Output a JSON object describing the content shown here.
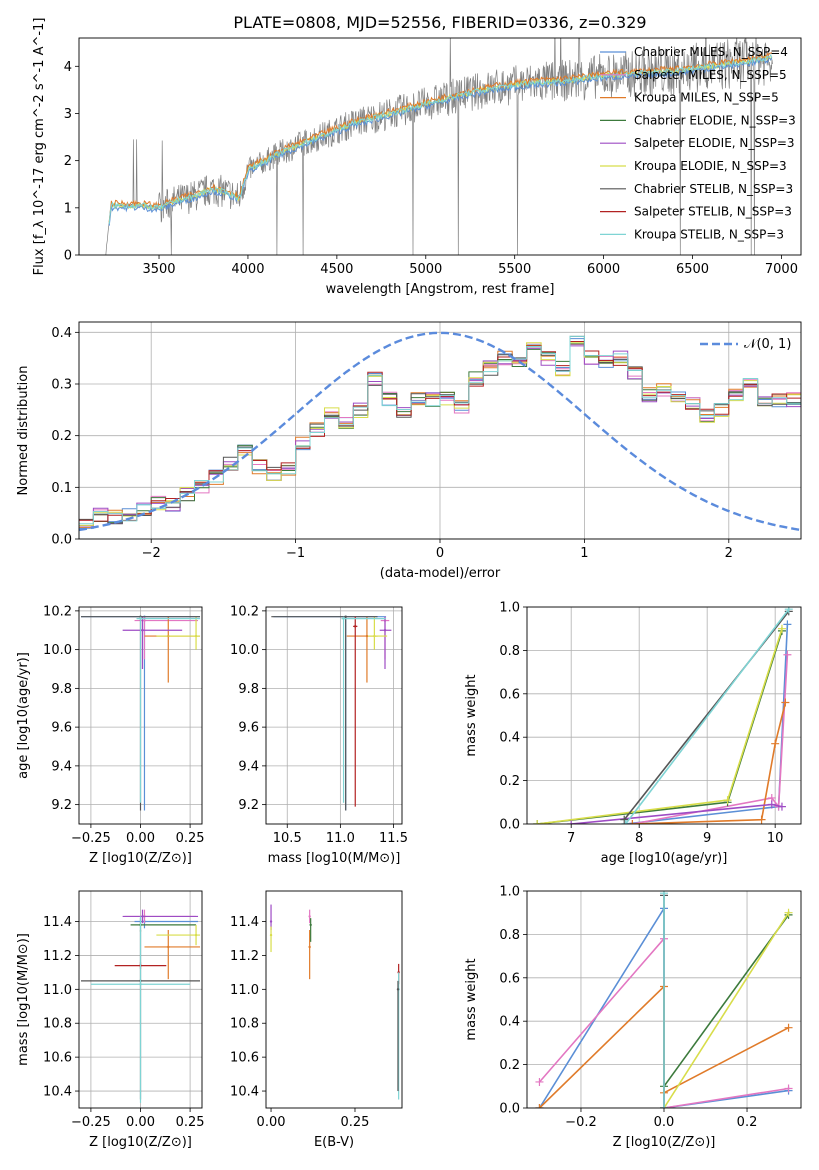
{
  "figure": {
    "title": "PLATE=0808, MJD=52556, FIBERID=0336, z=0.329"
  },
  "colors": {
    "chabrier_miles": "#5b8fd6",
    "salpeter_miles": "#e377c2",
    "kroupa_miles": "#e07b2a",
    "chabrier_elodie": "#3c7a3c",
    "salpeter_elodie": "#9e4cc4",
    "kroupa_elodie": "#d8dd4a",
    "chabrier_stelib": "#555555",
    "salpeter_stelib": "#b22222",
    "kroupa_stelib": "#7fd4d4",
    "spectrum": "#808080",
    "normal": "#5b8bdc",
    "grid": "#b0b0b0"
  },
  "chart_data": [
    {
      "id": "spectrum",
      "type": "line",
      "xlabel": "wavelength [Angstrom, rest frame]",
      "ylabel": "Flux [f_λ 10^-17 erg cm^-2 s^-1 A^-1]",
      "xlim": [
        3050,
        7110
      ],
      "ylim": [
        0,
        4.6
      ],
      "xticks": [
        "3500",
        "4000",
        "4500",
        "5000",
        "5500",
        "6000",
        "6500",
        "7000"
      ],
      "yticks": [
        "0",
        "1",
        "2",
        "3",
        "4"
      ],
      "grid": false,
      "legend_position": "upper-right",
      "legend": [
        "Chabrier MILES, N_SSP=4",
        "Salpeter MILES, N_SSP=5",
        "Kroupa MILES, N_SSP=5",
        "Chabrier ELODIE, N_SSP=3",
        "Salpeter ELODIE, N_SSP=3",
        "Kroupa ELODIE, N_SSP=3",
        "Chabrier STELIB, N_SSP=3",
        "Salpeter STELIB, N_SSP=3",
        "Kroupa STELIB, N_SSP=3"
      ],
      "trend": {
        "x": [
          3200,
          3230,
          3400,
          3500,
          3600,
          3700,
          3800,
          3900,
          3950,
          4000,
          4200,
          4400,
          4600,
          4800,
          5000,
          5200,
          5400,
          5600,
          5800,
          6000,
          6200,
          6400,
          6600,
          6800,
          6950
        ],
        "y": [
          0,
          1.05,
          1.05,
          1.0,
          1.15,
          1.25,
          1.4,
          1.3,
          1.2,
          1.8,
          2.2,
          2.5,
          2.8,
          3.0,
          3.2,
          3.4,
          3.55,
          3.65,
          3.7,
          3.8,
          3.85,
          3.9,
          4.0,
          4.1,
          4.2
        ]
      }
    },
    {
      "id": "residuals",
      "type": "histogram",
      "xlabel": "(data-model)/error",
      "ylabel": "Normed distribution",
      "xlim": [
        -2.5,
        2.5
      ],
      "ylim": [
        0,
        0.42
      ],
      "xticks": [
        "−2",
        "−1",
        "0",
        "1",
        "2"
      ],
      "yticks": [
        "0.0",
        "0.1",
        "0.2",
        "0.3",
        "0.4"
      ],
      "grid": true,
      "legend_position": "upper-right",
      "normal_label": "𝒩(0, 1)",
      "bin_width": 0.1,
      "bin_start": -2.5,
      "base_values": [
        0.035,
        0.045,
        0.042,
        0.048,
        0.055,
        0.07,
        0.068,
        0.085,
        0.1,
        0.12,
        0.145,
        0.17,
        0.14,
        0.125,
        0.135,
        0.185,
        0.21,
        0.24,
        0.225,
        0.25,
        0.31,
        0.27,
        0.25,
        0.27,
        0.27,
        0.27,
        0.255,
        0.31,
        0.33,
        0.35,
        0.345,
        0.37,
        0.35,
        0.33,
        0.38,
        0.35,
        0.34,
        0.35,
        0.32,
        0.28,
        0.29,
        0.27,
        0.265,
        0.24,
        0.25,
        0.28,
        0.3,
        0.27,
        0.27,
        0.27,
        0.35,
        0.375,
        0.38,
        0.33,
        0.36,
        0.35,
        0.31,
        0.34,
        0.31,
        0.28,
        0.3,
        0.27,
        0.245,
        0.265,
        0.28,
        0.31,
        0.26,
        0.25,
        0.22,
        0.2,
        0.2,
        0.195,
        0.175,
        0.165,
        0.15,
        0.16,
        0.155,
        0.14,
        0.13,
        0.12,
        0.115,
        0.13,
        0.1,
        0.095,
        0.09,
        0.08,
        0.075,
        0.07,
        0.065,
        0.06,
        0.055,
        0.05,
        0.045,
        0.04,
        0.045,
        0.04,
        0.035,
        0.04,
        0.035,
        0.03
      ]
    },
    {
      "id": "age_vs_Z",
      "type": "errorbar",
      "xlabel": "Z [log10(Z/Z⊙)]",
      "ylabel": "age  [log10(age/yr)]",
      "xlim": [
        -0.31,
        0.31
      ],
      "ylim": [
        9.1,
        10.22
      ],
      "xticks": [
        "−0.25",
        "0.00",
        "0.25"
      ],
      "yticks": [
        "9.2",
        "9.4",
        "9.6",
        "9.8",
        "10.0",
        "10.2"
      ],
      "grid": true,
      "points": [
        {
          "x": 0.02,
          "y": 10.17,
          "xerr": [
            0.32,
            0.28
          ],
          "yerr": [
            1.0,
            0.0
          ],
          "c": "chabrier_miles"
        },
        {
          "x": 0.02,
          "y": 10.15,
          "xerr": [
            0.05,
            0.27
          ],
          "yerr": [
            0.2,
            0.02
          ],
          "c": "salpeter_miles"
        },
        {
          "x": 0.14,
          "y": 10.07,
          "xerr": [
            0.12,
            0.16
          ],
          "yerr": [
            0.24,
            0.1
          ],
          "c": "kroupa_miles"
        },
        {
          "x": 0.01,
          "y": 10.1,
          "xerr": [
            0.1,
            0.2
          ],
          "yerr": [
            0.2,
            0.07
          ],
          "c": "salpeter_elodie"
        },
        {
          "x": 0.28,
          "y": 10.07,
          "xerr": [
            0.2,
            0.02
          ],
          "yerr": [
            0.07,
            0.1
          ],
          "c": "kroupa_elodie"
        },
        {
          "x": 0.0,
          "y": 10.17,
          "xerr": [
            0.3,
            0.3
          ],
          "yerr": [
            1.0,
            0.0
          ],
          "c": "chabrier_stelib"
        },
        {
          "x": 0.0,
          "y": 10.16,
          "xerr": [
            0.02,
            0.3
          ],
          "yerr": [
            0.95,
            0.01
          ],
          "c": "kroupa_stelib"
        }
      ]
    },
    {
      "id": "age_vs_mass",
      "type": "errorbar",
      "xlabel": "mass [log10(M/M⊙)]",
      "ylabel": "",
      "xlim": [
        10.3,
        11.58
      ],
      "ylim": [
        9.1,
        10.22
      ],
      "xticks": [
        "10.5",
        "11.0",
        "11.5"
      ],
      "yticks": [
        "9.2",
        "9.4",
        "9.6",
        "9.8",
        "10.0",
        "10.2"
      ],
      "grid": true,
      "points": [
        {
          "x": 11.05,
          "y": 10.17,
          "xerr": [
            0.68,
            0.38
          ],
          "yerr": [
            1.0,
            0.0
          ],
          "c": "chabrier_miles"
        },
        {
          "x": 11.42,
          "y": 10.15,
          "xerr": [
            0.04,
            0.04
          ],
          "yerr": [
            0.2,
            0.02
          ],
          "c": "salpeter_miles"
        },
        {
          "x": 11.25,
          "y": 10.07,
          "xerr": [
            0.19,
            0.1
          ],
          "yerr": [
            0.24,
            0.1
          ],
          "c": "kroupa_miles"
        },
        {
          "x": 11.42,
          "y": 10.1,
          "xerr": [
            0.05,
            0.06
          ],
          "yerr": [
            0.2,
            0.07
          ],
          "c": "salpeter_elodie"
        },
        {
          "x": 11.32,
          "y": 10.07,
          "xerr": [
            0.06,
            0.12
          ],
          "yerr": [
            0.07,
            0.1
          ],
          "c": "kroupa_elodie"
        },
        {
          "x": 11.05,
          "y": 10.17,
          "xerr": [
            0.7,
            0.3
          ],
          "yerr": [
            1.0,
            0.0
          ],
          "c": "chabrier_stelib"
        },
        {
          "x": 11.14,
          "y": 10.12,
          "xerr": [
            0.02,
            0.02
          ],
          "yerr": [
            0.93,
            0.05
          ],
          "c": "salpeter_stelib"
        },
        {
          "x": 11.03,
          "y": 10.16,
          "xerr": [
            0.02,
            0.4
          ],
          "yerr": [
            0.95,
            0.01
          ],
          "c": "kroupa_stelib"
        }
      ]
    },
    {
      "id": "mass_weight_vs_age",
      "type": "line",
      "xlabel": "age  [log10(age/yr)]",
      "ylabel": "mass weight",
      "xlim": [
        6.35,
        10.38
      ],
      "ylim": [
        0,
        1.0
      ],
      "xticks": [
        "7",
        "8",
        "9",
        "10"
      ],
      "yticks": [
        "0.0",
        "0.2",
        "0.4",
        "0.6",
        "0.8",
        "1.0"
      ],
      "grid": true,
      "series": [
        {
          "c": "chabrier_miles",
          "x": [
            7.8,
            10.05,
            10.18
          ],
          "y": [
            0.0,
            0.08,
            0.92
          ]
        },
        {
          "c": "salpeter_miles",
          "x": [
            7.9,
            9.95,
            10.05,
            10.18
          ],
          "y": [
            0.0,
            0.12,
            0.08,
            0.78
          ]
        },
        {
          "c": "kroupa_miles",
          "x": [
            7.9,
            9.8,
            10.0,
            10.15
          ],
          "y": [
            0.0,
            0.02,
            0.37,
            0.56
          ]
        },
        {
          "c": "chabrier_elodie",
          "x": [
            6.5,
            9.3,
            10.1
          ],
          "y": [
            0.0,
            0.1,
            0.89
          ]
        },
        {
          "c": "salpeter_elodie",
          "x": [
            7.0,
            9.95,
            10.1
          ],
          "y": [
            0.0,
            0.09,
            0.08
          ]
        },
        {
          "c": "kroupa_elodie",
          "x": [
            6.5,
            9.3,
            10.1
          ],
          "y": [
            0.0,
            0.11,
            0.9
          ]
        },
        {
          "c": "chabrier_stelib",
          "x": [
            7.78,
            10.2
          ],
          "y": [
            0.02,
            0.98
          ]
        },
        {
          "c": "kroupa_stelib",
          "x": [
            7.8,
            10.2
          ],
          "y": [
            0.0,
            0.99
          ]
        }
      ]
    },
    {
      "id": "mass_vs_Z",
      "type": "errorbar",
      "xlabel": "Z [log10(Z/Z⊙)]",
      "ylabel": "mass [log10(M/M⊙)]",
      "xlim": [
        -0.31,
        0.31
      ],
      "ylim": [
        10.3,
        11.58
      ],
      "xticks": [
        "−0.25",
        "0.00",
        "0.25"
      ],
      "yticks": [
        "10.4",
        "10.6",
        "10.8",
        "11.0",
        "11.2",
        "11.4"
      ],
      "grid": true,
      "points": [
        {
          "x": 0.02,
          "y": 11.4,
          "xerr": [
            0.05,
            0.27
          ],
          "yerr": [
            0.04,
            0.04
          ],
          "c": "chabrier_miles"
        },
        {
          "x": 0.02,
          "y": 11.43,
          "xerr": [
            0.1,
            0.26
          ],
          "yerr": [
            0.04,
            0.04
          ],
          "c": "salpeter_miles"
        },
        {
          "x": 0.14,
          "y": 11.25,
          "xerr": [
            0.12,
            0.16
          ],
          "yerr": [
            0.19,
            0.1
          ],
          "c": "kroupa_miles"
        },
        {
          "x": 0.0,
          "y": 11.38,
          "xerr": [
            0.05,
            0.28
          ],
          "yerr": [
            0.04,
            0.04
          ],
          "c": "chabrier_elodie"
        },
        {
          "x": 0.01,
          "y": 11.43,
          "xerr": [
            0.1,
            0.28
          ],
          "yerr": [
            0.04,
            0.04
          ],
          "c": "salpeter_elodie"
        },
        {
          "x": 0.28,
          "y": 11.32,
          "xerr": [
            0.2,
            0.02
          ],
          "yerr": [
            0.06,
            0.06
          ],
          "c": "kroupa_elodie"
        },
        {
          "x": 0.0,
          "y": 11.05,
          "xerr": [
            0.3,
            0.3
          ],
          "yerr": [
            0.7,
            0.3
          ],
          "c": "chabrier_stelib"
        },
        {
          "x": 0.0,
          "y": 11.14,
          "xerr": [
            0.13,
            0.13
          ],
          "yerr": [
            0.02,
            0.02
          ],
          "c": "salpeter_stelib"
        },
        {
          "x": 0.0,
          "y": 11.03,
          "xerr": [
            0.25,
            0.25
          ],
          "yerr": [
            0.7,
            0.4
          ],
          "c": "kroupa_stelib"
        }
      ]
    },
    {
      "id": "mass_vs_ebv",
      "type": "errorbar",
      "xlabel": "E(B-V)",
      "ylabel": "",
      "xlim": [
        -0.015,
        0.39
      ],
      "ylim": [
        10.3,
        11.58
      ],
      "xticks": [
        "0.00",
        "0.25"
      ],
      "yticks": [
        "10.4",
        "10.6",
        "10.8",
        "11.0",
        "11.2",
        "11.4"
      ],
      "grid": false,
      "points": [
        {
          "x": 0.0,
          "y": 11.4,
          "xerr": [
            0,
            0
          ],
          "yerr": [
            0.05,
            0.1
          ],
          "c": "salpeter_elodie"
        },
        {
          "x": 0.0,
          "y": 11.32,
          "xerr": [
            0,
            0
          ],
          "yerr": [
            0.1,
            0.05
          ],
          "c": "kroupa_elodie"
        },
        {
          "x": 0.115,
          "y": 11.43,
          "xerr": [
            0,
            0
          ],
          "yerr": [
            0.04,
            0.04
          ],
          "c": "salpeter_miles"
        },
        {
          "x": 0.115,
          "y": 11.25,
          "xerr": [
            0,
            0
          ],
          "yerr": [
            0.19,
            0.1
          ],
          "c": "kroupa_miles"
        },
        {
          "x": 0.118,
          "y": 11.38,
          "xerr": [
            0,
            0
          ],
          "yerr": [
            0.1,
            0.04
          ],
          "c": "chabrier_elodie"
        },
        {
          "x": 0.38,
          "y": 11.1,
          "xerr": [
            0,
            0
          ],
          "yerr": [
            0.07,
            0.05
          ],
          "c": "salpeter_stelib"
        },
        {
          "x": 0.38,
          "y": 11.0,
          "xerr": [
            0,
            0
          ],
          "yerr": [
            0.65,
            0.1
          ],
          "c": "kroupa_stelib"
        },
        {
          "x": 0.378,
          "y": 11.0,
          "xerr": [
            0,
            0
          ],
          "yerr": [
            0.6,
            0.05
          ],
          "c": "chabrier_stelib"
        }
      ]
    },
    {
      "id": "mass_weight_vs_Z",
      "type": "line",
      "xlabel": "Z [log10(Z/Z⊙)]",
      "ylabel": "mass weight",
      "xlim": [
        -0.33,
        0.33
      ],
      "ylim": [
        0,
        1.0
      ],
      "xticks": [
        "−0.2",
        "0.0",
        "0.2"
      ],
      "yticks": [
        "0.0",
        "0.2",
        "0.4",
        "0.6",
        "0.8",
        "1.0"
      ],
      "grid": true,
      "series": [
        {
          "c": "chabrier_miles",
          "x": [
            -0.3,
            0.0,
            0.0,
            0.3
          ],
          "y": [
            0.0,
            0.92,
            0.0,
            0.08
          ]
        },
        {
          "c": "salpeter_miles",
          "x": [
            -0.3,
            0.0,
            0.0,
            0.3
          ],
          "y": [
            0.12,
            0.78,
            0.0,
            0.09
          ]
        },
        {
          "c": "kroupa_miles",
          "x": [
            -0.3,
            0.0,
            0.0,
            0.3
          ],
          "y": [
            0.0,
            0.56,
            0.07,
            0.37
          ]
        },
        {
          "c": "chabrier_elodie",
          "x": [
            0.0,
            0.3
          ],
          "y": [
            0.1,
            0.89
          ]
        },
        {
          "c": "kroupa_elodie",
          "x": [
            0.0,
            0.3
          ],
          "y": [
            0.0,
            0.9
          ]
        },
        {
          "c": "chabrier_stelib",
          "x": [
            0.0,
            0.0
          ],
          "y": [
            0.0,
            0.98
          ]
        },
        {
          "c": "kroupa_stelib",
          "x": [
            0.0,
            0.0
          ],
          "y": [
            0.0,
            0.99
          ]
        }
      ]
    }
  ]
}
